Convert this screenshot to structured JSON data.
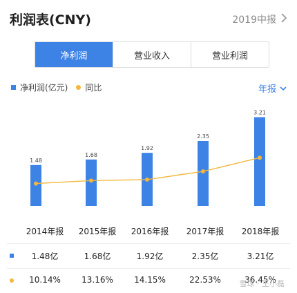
{
  "header": {
    "title": "利润表(CNY)",
    "period": "2019中报"
  },
  "tabs": [
    {
      "label": "净利润",
      "active": true
    },
    {
      "label": "营业收入",
      "active": false
    },
    {
      "label": "营业利润",
      "active": false
    }
  ],
  "legend": {
    "bar_label": "净利润(亿元)",
    "line_label": "同比"
  },
  "frequency": {
    "label": "年报"
  },
  "colors": {
    "accent": "#3d83e6",
    "bar": "#3d83e6",
    "line": "#f3b73b"
  },
  "chart_data": {
    "type": "bar",
    "categories": [
      "2014年报",
      "2015年报",
      "2016年报",
      "2017年报",
      "2018年报"
    ],
    "series": [
      {
        "name": "净利润(亿元)",
        "type": "bar",
        "values": [
          1.48,
          1.68,
          1.92,
          2.35,
          3.21
        ]
      },
      {
        "name": "同比",
        "type": "line",
        "values": [
          10.14,
          13.16,
          14.15,
          22.53,
          36.45
        ]
      }
    ],
    "bar_value_labels": [
      "1.48",
      "1.68",
      "1.92",
      "2.35",
      "3.21"
    ]
  },
  "table": {
    "headers": [
      "2014年报",
      "2015年报",
      "2016年报",
      "2017年报",
      "2018年报"
    ],
    "rows": [
      {
        "marker": "bar",
        "cells": [
          "1.48亿",
          "1.68亿",
          "1.92亿",
          "2.35亿",
          "3.21亿"
        ]
      },
      {
        "marker": "line",
        "cells": [
          "10.14%",
          "13.16%",
          "14.15%",
          "22.53%",
          "36.45%"
        ]
      }
    ]
  },
  "watermark": "雪球 · 王小磊"
}
